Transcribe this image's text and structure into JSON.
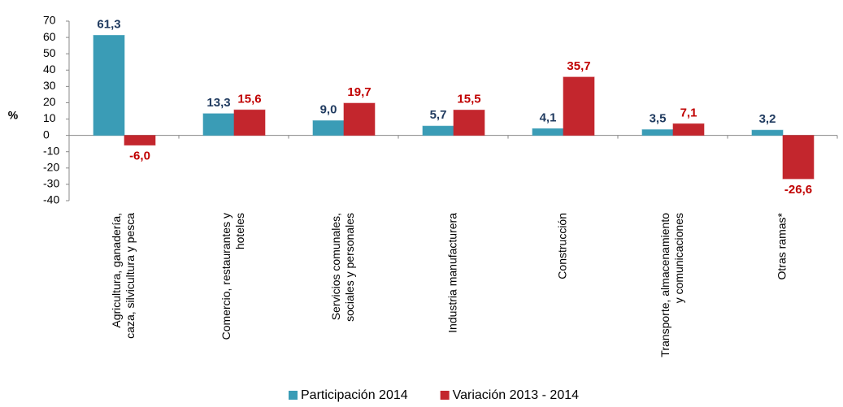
{
  "chart_data": {
    "type": "bar",
    "y_label": "%",
    "categories": [
      "Agricultura, ganadería, caza, silvicultura y pesca",
      "Comercio, restaurantes y hoteles",
      "Servicios comunales, sociales y personales",
      "Industria manufacturera",
      "Construcción",
      "Transporte, almacenamiento y comunicaciones",
      "Otras ramas*"
    ],
    "series": [
      {
        "name": "Participación 2014",
        "color": "#3a9cb6",
        "label_color": "#1f3a5f",
        "values": [
          61.3,
          13.3,
          9.0,
          5.7,
          4.1,
          3.5,
          3.2
        ],
        "value_labels": [
          "61,3",
          "13,3",
          "9,0",
          "5,7",
          "4,1",
          "3,5",
          "3,2"
        ]
      },
      {
        "name": "Variación 2013 - 2014",
        "color": "#c3262d",
        "label_color": "#c00000",
        "values": [
          -6.0,
          15.6,
          19.7,
          15.5,
          35.7,
          7.1,
          -26.6
        ],
        "value_labels": [
          "-6,0",
          "15,6",
          "19,7",
          "15,5",
          "35,7",
          "7,1",
          "-26,6"
        ]
      }
    ],
    "ylim": [
      -40,
      70
    ],
    "yticks": [
      -40,
      -30,
      -20,
      -10,
      0,
      10,
      20,
      30,
      40,
      50,
      60,
      70
    ]
  }
}
